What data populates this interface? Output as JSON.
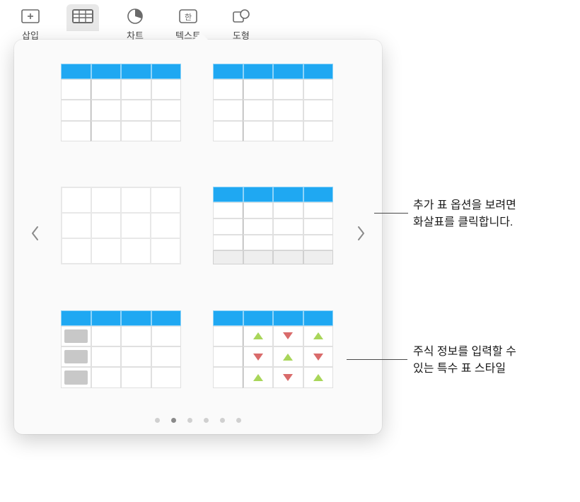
{
  "toolbar": {
    "items": [
      {
        "label": "삽입",
        "icon": "insert"
      },
      {
        "label": "",
        "icon": "table",
        "active": true
      },
      {
        "label": "차트",
        "icon": "chart"
      },
      {
        "label": "텍스트",
        "icon": "text"
      },
      {
        "label": "도형",
        "icon": "shape"
      }
    ]
  },
  "popover": {
    "accent_color": "#1fa8f2",
    "border_color": "#d8d8d8",
    "thumbs": [
      {
        "header": true,
        "first_col_divider": true
      },
      {
        "header": true,
        "first_col_divider": true
      },
      {
        "header": false,
        "plain": true
      },
      {
        "header": true,
        "first_col_divider": true,
        "footer": true
      },
      {
        "header": true,
        "body_blocks": true
      },
      {
        "header": true,
        "first_col_divider": true,
        "stock_arrows": true
      }
    ],
    "stock_arrows_grid": [
      [
        "up",
        "down",
        "up"
      ],
      [
        "down",
        "up",
        "down"
      ],
      [
        "up",
        "down",
        "up"
      ]
    ],
    "arrow_colors": {
      "up": "#a9d65a",
      "down": "#d96b6b"
    },
    "page_count": 6,
    "active_page": 1
  },
  "callouts": {
    "top": {
      "lines": [
        "추가 표 옵션을 보려면",
        "화살표를 클릭합니다."
      ]
    },
    "bottom": {
      "lines": [
        "주식 정보를 입력할 수",
        "있는 특수 표 스타일"
      ]
    }
  }
}
